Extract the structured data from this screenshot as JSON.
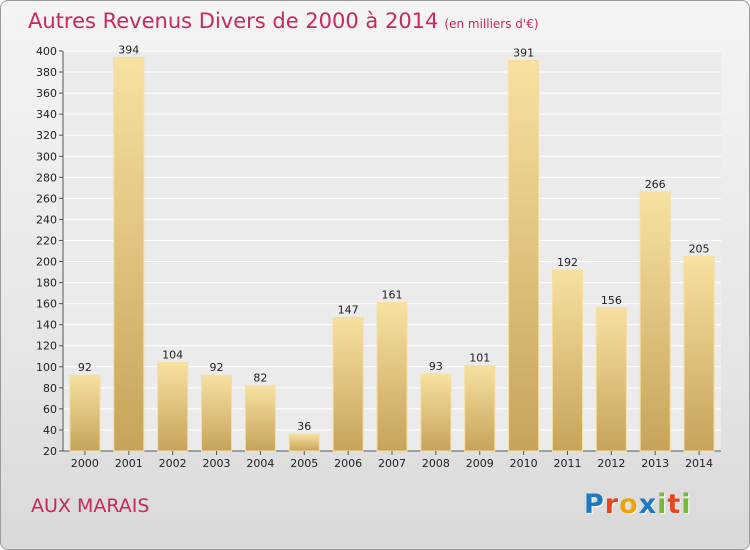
{
  "title": "Autres Revenus Divers de 2000 à 2014",
  "subtitle": "(en milliers d'€)",
  "commune": "AUX MARAIS",
  "logo": {
    "letters": [
      "P",
      "r",
      "o",
      "x",
      "i",
      "t",
      "i"
    ],
    "colors": [
      "#1d7ac2",
      "#e8451e",
      "#f2a20c",
      "#1d7ac2",
      "#78b83a",
      "#e8451e",
      "#78b83a"
    ]
  },
  "colors": {
    "title": "#c8285a",
    "bar_top": "#f7e1a0",
    "bar_bottom": "#c7a35a"
  },
  "chart_data": {
    "type": "bar",
    "categories": [
      "2000",
      "2001",
      "2002",
      "2003",
      "2004",
      "2005",
      "2006",
      "2007",
      "2008",
      "2009",
      "2010",
      "2011",
      "2012",
      "2013",
      "2014"
    ],
    "values": [
      92,
      394,
      104,
      92,
      82,
      36,
      147,
      161,
      93,
      101,
      391,
      192,
      156,
      266,
      205
    ],
    "ylim": [
      20,
      400
    ],
    "yticks": [
      20,
      40,
      60,
      80,
      100,
      120,
      140,
      160,
      180,
      200,
      220,
      240,
      260,
      280,
      300,
      320,
      340,
      360,
      380,
      400
    ],
    "grid": true,
    "title": "Autres Revenus Divers de 2000 à 2014",
    "xlabel": "",
    "ylabel": ""
  }
}
